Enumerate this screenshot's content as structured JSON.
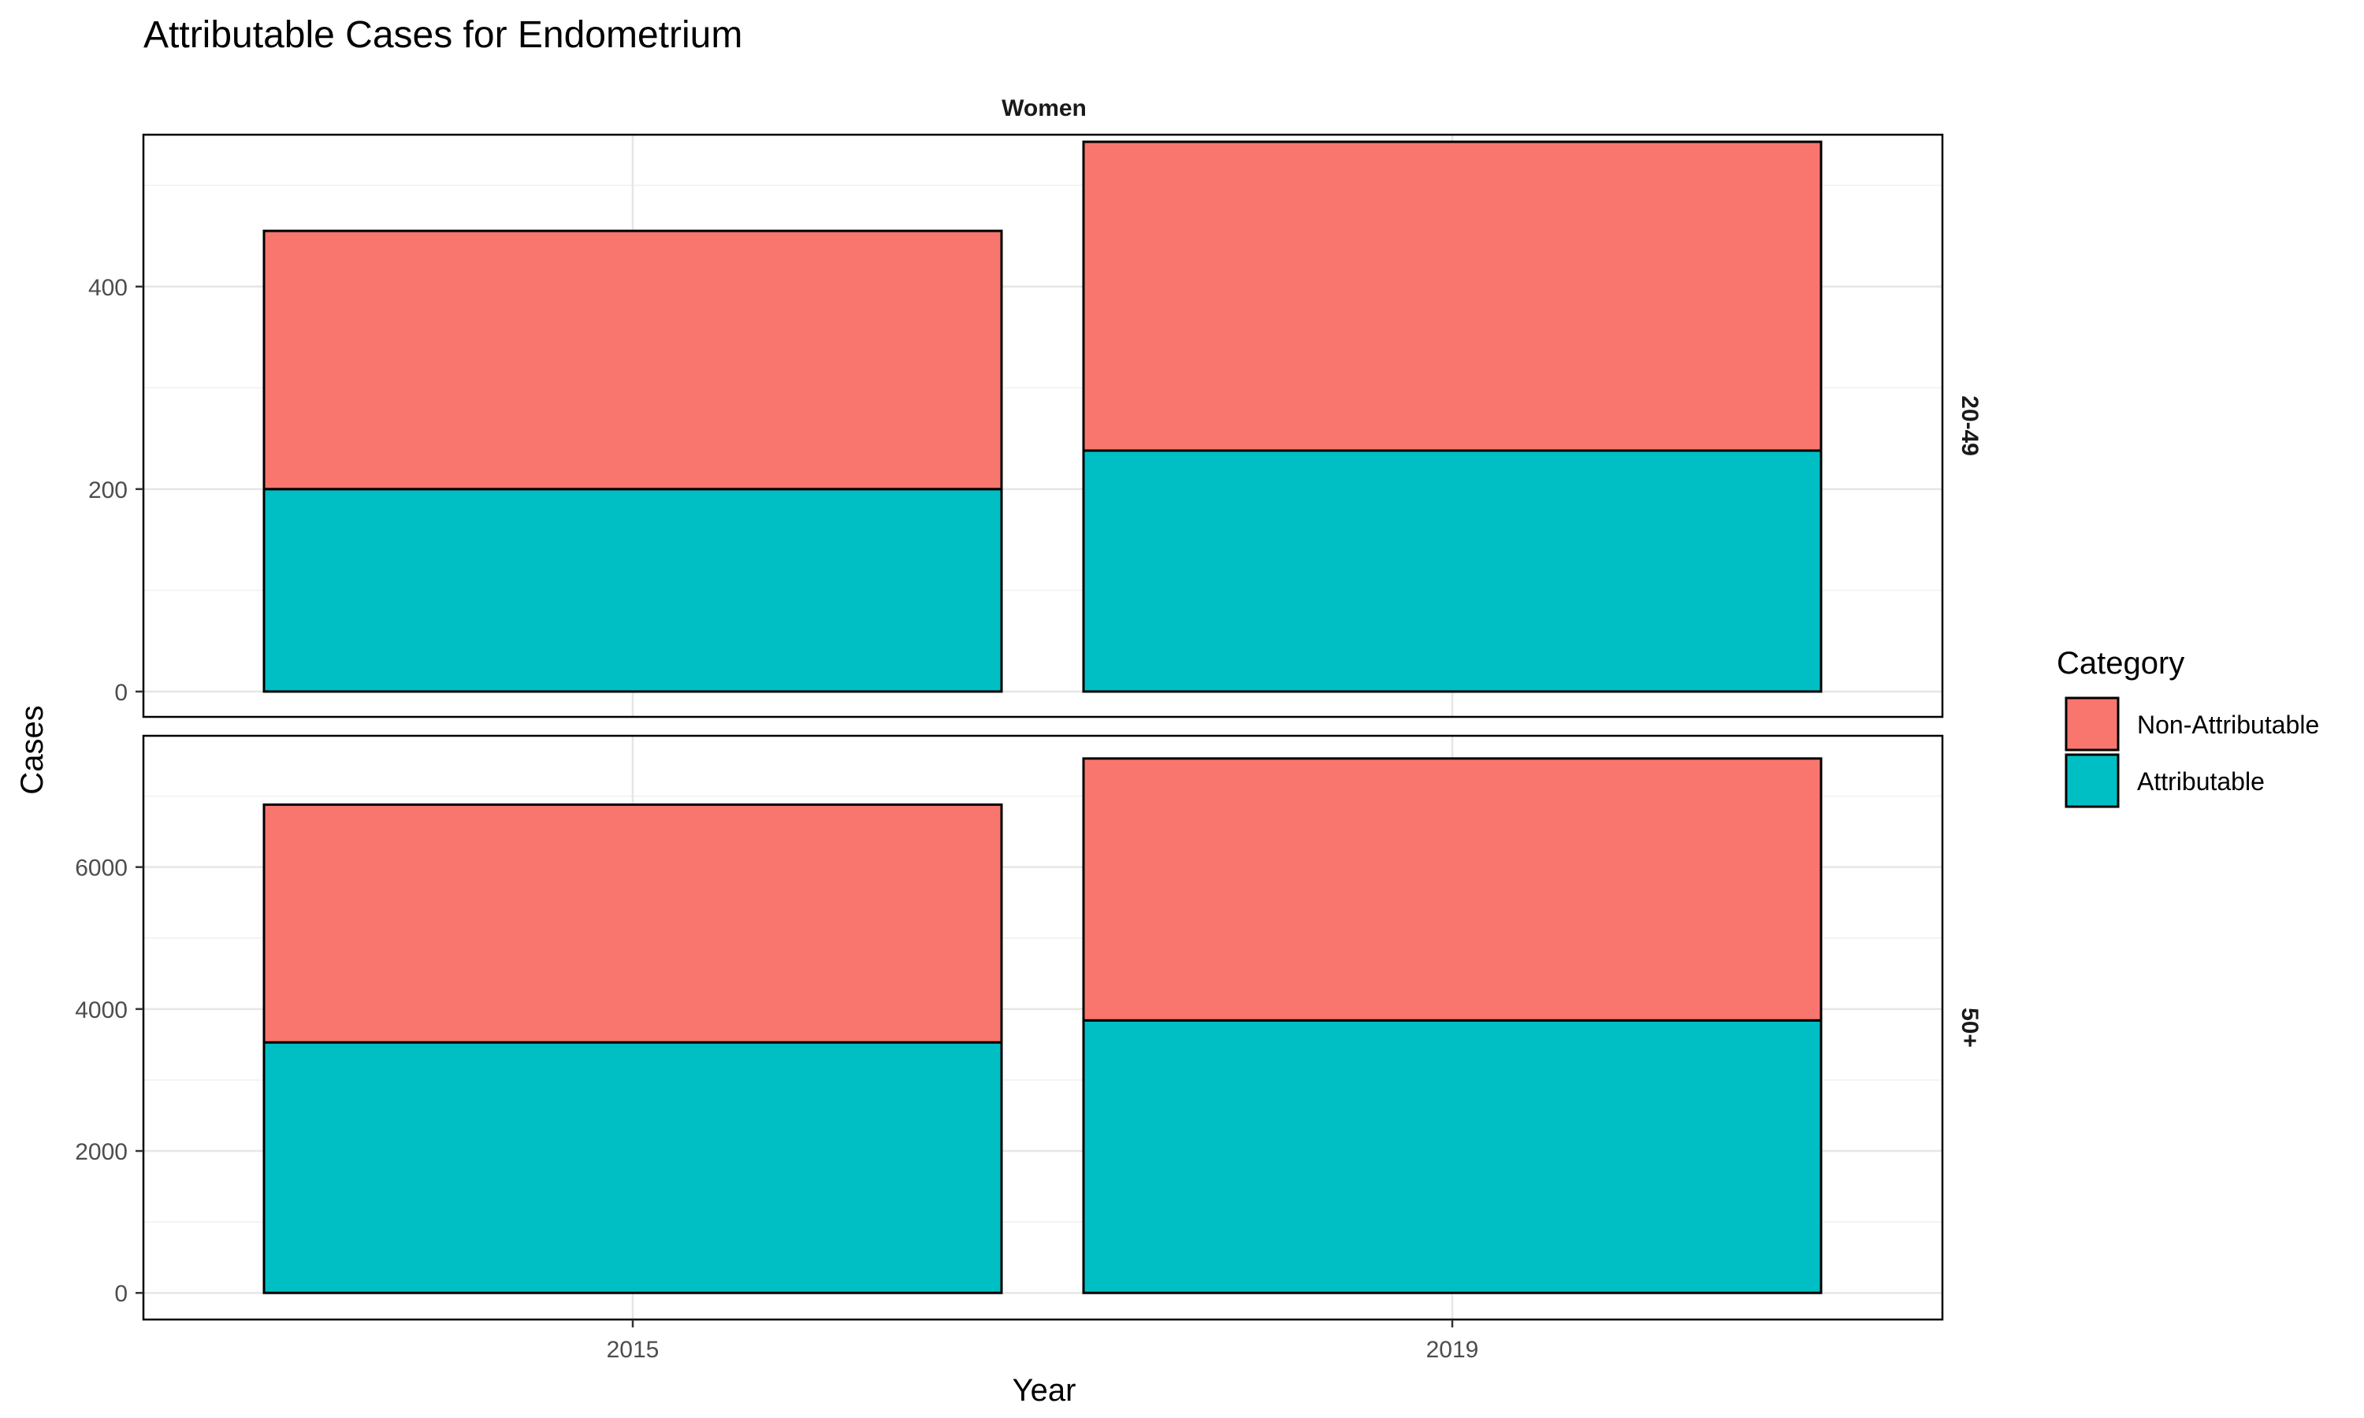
{
  "chart_data": {
    "type": "bar",
    "stacked": true,
    "faceted": true,
    "title": "Attributable Cases for Endometrium",
    "column_facet": "Women",
    "xlabel": "Year",
    "ylabel": "Cases",
    "categories": [
      "2015",
      "2019"
    ],
    "legend": {
      "title": "Category",
      "placement": "right",
      "entries": [
        {
          "name": "Non-Attributable",
          "color": "#F8766D"
        },
        {
          "name": "Attributable",
          "color": "#00BFC4"
        }
      ]
    },
    "grid": true,
    "panels": [
      {
        "row_label": "20-49",
        "ylim": [
          -25,
          550
        ],
        "yticks": [
          "0",
          "200",
          "400"
        ],
        "series": [
          {
            "name": "Attributable",
            "values": [
              200,
              238
            ]
          },
          {
            "name": "Non-Attributable",
            "values": [
              255,
              305
            ]
          }
        ]
      },
      {
        "row_label": "50+",
        "ylim": [
          -375,
          7850
        ],
        "yticks": [
          "0",
          "2000",
          "4000",
          "6000"
        ],
        "series": [
          {
            "name": "Attributable",
            "values": [
              3530,
              3840
            ]
          },
          {
            "name": "Non-Attributable",
            "values": [
              3350,
              3690
            ]
          }
        ]
      }
    ]
  }
}
